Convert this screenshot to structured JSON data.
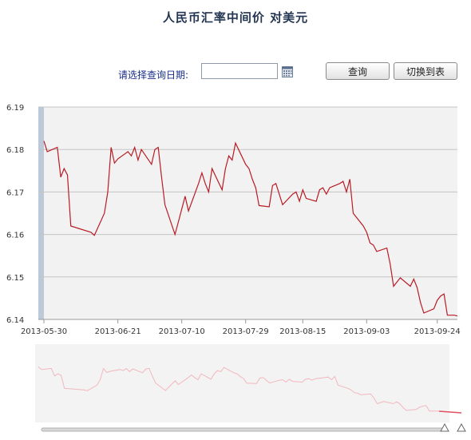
{
  "title": "人民币汇率中间价  对美元",
  "date_form": {
    "label": "请选择查询日期:",
    "input_value": "",
    "query_button": "查询",
    "switch_button": "切换到表"
  },
  "chart_data": {
    "type": "line",
    "title": "",
    "xlabel": "",
    "ylabel": "",
    "ylim": [
      6.14,
      6.19
    ],
    "yticks": [
      "6.19",
      "6.18",
      "6.17",
      "6.16",
      "6.15",
      "6.14"
    ],
    "xticks": [
      "2013-05-30",
      "2013-06-21",
      "2013-07-10",
      "2013-07-29",
      "2013-08-15",
      "2013-09-03",
      "2013-09-24"
    ],
    "grid": true,
    "legend": "none",
    "line_color": "#b81c25",
    "navigator_color": "#f2b8bd",
    "x": [
      "2013-05-30",
      "2013-05-31",
      "2013-06-03",
      "2013-06-04",
      "2013-06-05",
      "2013-06-06",
      "2013-06-07",
      "2013-06-13",
      "2013-06-14",
      "2013-06-17",
      "2013-06-18",
      "2013-06-19",
      "2013-06-20",
      "2013-06-21",
      "2013-06-24",
      "2013-06-25",
      "2013-06-26",
      "2013-06-27",
      "2013-06-28",
      "2013-07-01",
      "2013-07-02",
      "2013-07-03",
      "2013-07-04",
      "2013-07-05",
      "2013-07-08",
      "2013-07-09",
      "2013-07-10",
      "2013-07-11",
      "2013-07-12",
      "2013-07-15",
      "2013-07-16",
      "2013-07-17",
      "2013-07-18",
      "2013-07-19",
      "2013-07-22",
      "2013-07-23",
      "2013-07-24",
      "2013-07-25",
      "2013-07-26",
      "2013-07-29",
      "2013-07-30",
      "2013-07-31",
      "2013-08-01",
      "2013-08-02",
      "2013-08-05",
      "2013-08-06",
      "2013-08-07",
      "2013-08-08",
      "2013-08-09",
      "2013-08-12",
      "2013-08-13",
      "2013-08-14",
      "2013-08-15",
      "2013-08-16",
      "2013-08-19",
      "2013-08-20",
      "2013-08-21",
      "2013-08-22",
      "2013-08-23",
      "2013-08-26",
      "2013-08-27",
      "2013-08-28",
      "2013-08-29",
      "2013-08-30",
      "2013-09-02",
      "2013-09-03",
      "2013-09-04",
      "2013-09-05",
      "2013-09-06",
      "2013-09-09",
      "2013-09-10",
      "2013-09-11",
      "2013-09-12",
      "2013-09-13",
      "2013-09-16",
      "2013-09-17",
      "2013-09-18",
      "2013-09-19",
      "2013-09-20",
      "2013-09-23",
      "2013-09-24",
      "2013-09-25",
      "2013-09-26",
      "2013-09-27",
      "2013-09-29",
      "2013-09-30"
    ],
    "values": [
      6.182,
      6.1795,
      6.1805,
      6.1735,
      6.1755,
      6.174,
      6.162,
      6.1605,
      6.1598,
      6.165,
      6.17,
      6.1805,
      6.1768,
      6.1778,
      6.1795,
      6.1785,
      6.1805,
      6.1775,
      6.18,
      6.1765,
      6.18,
      6.1805,
      6.1735,
      6.167,
      6.16,
      6.163,
      6.166,
      6.169,
      6.1655,
      6.172,
      6.1745,
      6.172,
      6.17,
      6.1755,
      6.1705,
      6.1755,
      6.1785,
      6.1775,
      6.1815,
      6.1765,
      6.1755,
      6.173,
      6.171,
      6.1668,
      6.1665,
      6.1715,
      6.172,
      6.1695,
      6.167,
      6.1695,
      6.17,
      6.1678,
      6.1705,
      6.1685,
      6.1678,
      6.1705,
      6.171,
      6.1695,
      6.171,
      6.172,
      6.1725,
      6.17,
      6.173,
      6.165,
      6.162,
      6.1605,
      6.158,
      6.1575,
      6.156,
      6.1568,
      6.153,
      6.1478,
      6.1488,
      6.1498,
      6.1478,
      6.1495,
      6.1475,
      6.144,
      6.1415,
      6.1425,
      6.1445,
      6.1455,
      6.146,
      6.141,
      6.141,
      6.1408
    ]
  }
}
